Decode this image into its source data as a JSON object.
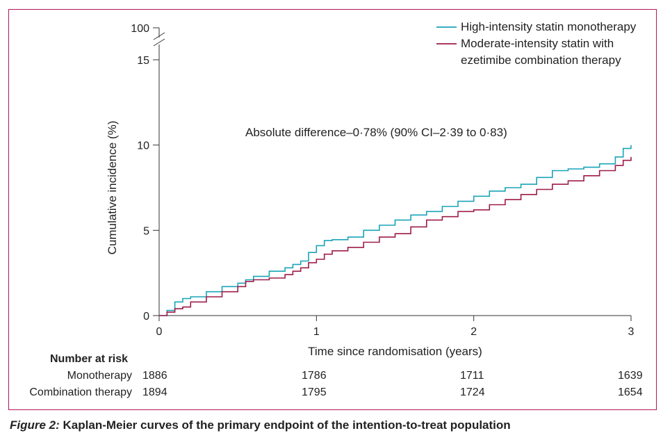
{
  "chart_data": {
    "type": "line",
    "title": "",
    "xlabel": "Time since randomisation (years)",
    "ylabel": "Cumulative incidence (%)",
    "xlim": [
      0,
      3
    ],
    "ylim": [
      0,
      15
    ],
    "x_ticks": [
      "0",
      "1",
      "2",
      "3"
    ],
    "y_ticks": [
      "0",
      "5",
      "10",
      "15",
      "100"
    ],
    "y_axis_break": true,
    "legend_position": "top-right",
    "annotation": "Absolute difference–0·78% (90% CI–2·39 to 0·83)",
    "series": [
      {
        "name": "High-intensity statin monotherapy",
        "color": "#1aa3b8",
        "x": [
          0,
          0.05,
          0.1,
          0.15,
          0.2,
          0.3,
          0.4,
          0.5,
          0.55,
          0.6,
          0.7,
          0.8,
          0.85,
          0.9,
          0.95,
          1.0,
          1.05,
          1.1,
          1.2,
          1.3,
          1.4,
          1.5,
          1.6,
          1.7,
          1.8,
          1.9,
          2.0,
          2.1,
          2.2,
          2.3,
          2.4,
          2.5,
          2.6,
          2.7,
          2.8,
          2.9,
          2.95,
          3.0
        ],
        "y": [
          0,
          0.3,
          0.8,
          1.0,
          1.1,
          1.4,
          1.7,
          1.9,
          2.1,
          2.3,
          2.6,
          2.8,
          3.0,
          3.2,
          3.7,
          4.1,
          4.4,
          4.45,
          4.6,
          5.0,
          5.3,
          5.6,
          5.9,
          6.1,
          6.4,
          6.7,
          7.0,
          7.3,
          7.5,
          7.7,
          8.1,
          8.5,
          8.6,
          8.7,
          8.9,
          9.3,
          9.8,
          10.0
        ]
      },
      {
        "name": "Moderate-intensity statin with ezetimibe combination therapy",
        "color": "#9e1b4a",
        "x": [
          0,
          0.05,
          0.1,
          0.15,
          0.2,
          0.3,
          0.4,
          0.5,
          0.55,
          0.6,
          0.7,
          0.8,
          0.85,
          0.9,
          0.95,
          1.0,
          1.05,
          1.1,
          1.2,
          1.3,
          1.4,
          1.5,
          1.6,
          1.7,
          1.8,
          1.9,
          2.0,
          2.1,
          2.2,
          2.3,
          2.4,
          2.5,
          2.6,
          2.7,
          2.8,
          2.9,
          2.95,
          3.0
        ],
        "y": [
          0,
          0.2,
          0.4,
          0.5,
          0.8,
          1.1,
          1.4,
          1.7,
          2.0,
          2.1,
          2.2,
          2.4,
          2.6,
          2.8,
          3.1,
          3.3,
          3.6,
          3.8,
          4.0,
          4.3,
          4.6,
          4.8,
          5.2,
          5.6,
          5.8,
          6.1,
          6.2,
          6.5,
          6.8,
          7.1,
          7.4,
          7.7,
          7.9,
          8.2,
          8.5,
          8.8,
          9.1,
          9.3
        ]
      }
    ]
  },
  "risk_table": {
    "title": "Number at risk",
    "rows": [
      {
        "label": "Monotherapy",
        "values": [
          "1886",
          "1786",
          "1711",
          "1639"
        ]
      },
      {
        "label": "Combination therapy",
        "values": [
          "1894",
          "1795",
          "1724",
          "1654"
        ]
      }
    ]
  },
  "caption": {
    "figure_label": "Figure 2:",
    "text": " Kaplan-Meier curves of the primary endpoint of the intention-to-treat population"
  }
}
